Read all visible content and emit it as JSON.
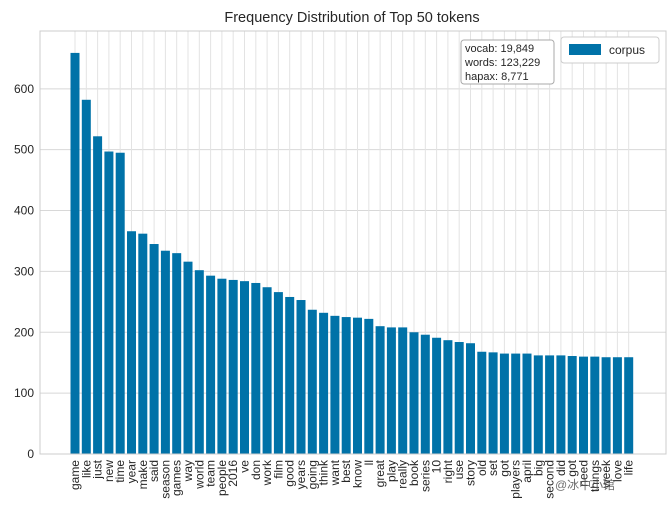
{
  "chart_data": {
    "type": "bar",
    "title": "Frequency Distribution of Top 50 tokens",
    "xlabel": "",
    "ylabel": "",
    "ylim": [
      0,
      695
    ],
    "yticks": [
      0,
      100,
      200,
      300,
      400,
      500,
      600
    ],
    "grid": true,
    "legend_position": "top-right",
    "series": [
      {
        "name": "corpus",
        "color": "#0072a8",
        "values": [
          659,
          582,
          522,
          497,
          495,
          366,
          362,
          345,
          334,
          330,
          316,
          302,
          293,
          288,
          286,
          284,
          281,
          274,
          266,
          258,
          253,
          237,
          232,
          227,
          225,
          224,
          222,
          210,
          208,
          208,
          200,
          196,
          191,
          187,
          184,
          182,
          168,
          167,
          165,
          165,
          165,
          162,
          162,
          162,
          161,
          160,
          160,
          159,
          159,
          159
        ]
      }
    ],
    "categories": [
      "game",
      "like",
      "just",
      "new",
      "time",
      "year",
      "make",
      "said",
      "season",
      "games",
      "way",
      "world",
      "team",
      "people",
      "2016",
      "ve",
      "don",
      "work",
      "film",
      "good",
      "years",
      "going",
      "think",
      "want",
      "best",
      "know",
      "ll",
      "great",
      "play",
      "really",
      "book",
      "series",
      "10",
      "right",
      "use",
      "story",
      "old",
      "set",
      "got",
      "players",
      "april",
      "big",
      "second",
      "did",
      "got",
      "need",
      "things",
      "week",
      "love",
      "life"
    ],
    "stats": {
      "vocab": "vocab: 19,849",
      "words": "words: 123,229",
      "hapax": "hapax: 8,771"
    }
  },
  "watermark": "@冰中小馆"
}
